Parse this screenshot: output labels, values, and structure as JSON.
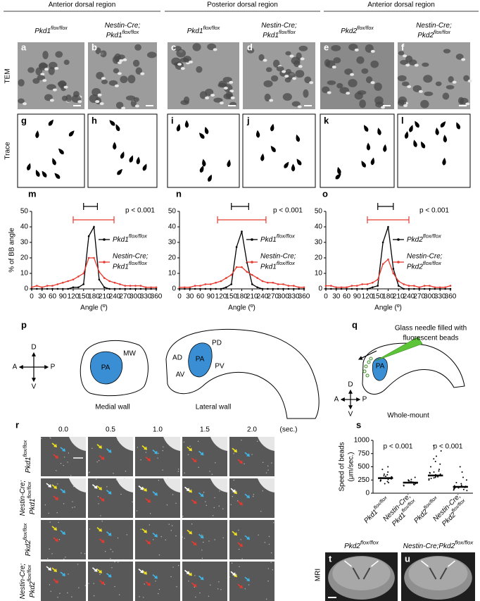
{
  "regions": [
    "Anterior dorsal region",
    "Posterior dorsal region",
    "Anterior dorsal region"
  ],
  "row_labels": {
    "tem": "TEM",
    "trace": "Trace",
    "mri": "MRI"
  },
  "panel_letters": [
    "a",
    "b",
    "c",
    "d",
    "e",
    "f",
    "g",
    "h",
    "i",
    "j",
    "k",
    "l",
    "m",
    "n",
    "o",
    "p",
    "q",
    "r",
    "s",
    "t",
    "u"
  ],
  "genotypes": [
    {
      "gene": "Pkd1",
      "sup": "flox/flox"
    },
    {
      "prefix": "Nestin-Cre;",
      "gene": "Pkd1",
      "sup": "flox/flox"
    },
    {
      "gene": "Pkd1",
      "sup": "flox/flox"
    },
    {
      "prefix": "Nestin-Cre;",
      "gene": "Pkd1",
      "sup": "flox/flox"
    },
    {
      "gene": "Pkd2",
      "sup": "flox/flox"
    },
    {
      "prefix": "Nestin-Cre;",
      "gene": "Pkd2",
      "sup": "flox/flox"
    }
  ],
  "chart_data": [
    {
      "type": "line",
      "annotation": "p < 0.001",
      "xlabel": "Angle (º)",
      "ylabel": "% of BB angle",
      "x": [
        0,
        15,
        30,
        45,
        60,
        75,
        90,
        105,
        120,
        135,
        150,
        165,
        180,
        195,
        210,
        225,
        240,
        255,
        270,
        285,
        300,
        315,
        330,
        345,
        360
      ],
      "xlim": [
        0,
        360
      ],
      "xticks": [
        0,
        30,
        60,
        90,
        120,
        150,
        180,
        210,
        240,
        270,
        300,
        330,
        360
      ],
      "ylim": [
        0,
        50
      ],
      "yticks": [
        0,
        10,
        20,
        30,
        40,
        50
      ],
      "series": [
        {
          "name": {
            "gene": "Pkd1",
            "sup": "flox/flox"
          },
          "color": "#000000",
          "range": [
            150,
            190
          ],
          "values": [
            0,
            0,
            0,
            0,
            0,
            0,
            0,
            0,
            1,
            1,
            3,
            34,
            40,
            6,
            1,
            0,
            0,
            0,
            0,
            0,
            0,
            0,
            0,
            0,
            0
          ]
        },
        {
          "name": {
            "prefix": "Nestin-Cre;",
            "gene": "Pkd1",
            "sup": "flox/flox"
          },
          "color": "#e8392f",
          "range": [
            120,
            238
          ],
          "values": [
            1,
            2,
            1,
            2,
            2,
            3,
            4,
            5,
            6,
            8,
            10,
            20,
            20,
            11,
            7,
            5,
            4,
            3,
            2,
            2,
            2,
            2,
            1,
            1,
            1
          ]
        }
      ]
    },
    {
      "type": "line",
      "annotation": "p < 0.001",
      "xlabel": "Angle (º)",
      "x": [
        0,
        15,
        30,
        45,
        60,
        75,
        90,
        105,
        120,
        135,
        150,
        165,
        180,
        195,
        210,
        225,
        240,
        255,
        270,
        285,
        300,
        315,
        330,
        345,
        360
      ],
      "xlim": [
        0,
        360
      ],
      "xticks": [
        0,
        30,
        60,
        90,
        120,
        150,
        180,
        210,
        240,
        270,
        300,
        330,
        360
      ],
      "ylim": [
        0,
        50
      ],
      "yticks": [
        0,
        10,
        20,
        30,
        40,
        50
      ],
      "series": [
        {
          "name": {
            "gene": "Pkd1",
            "sup": "flox/flox"
          },
          "color": "#000000",
          "range": [
            150,
            200
          ],
          "values": [
            0,
            0,
            0,
            0,
            0,
            0,
            0,
            0,
            0,
            1,
            3,
            27,
            37,
            17,
            3,
            1,
            0,
            0,
            0,
            0,
            0,
            0,
            0,
            0,
            0
          ]
        },
        {
          "name": {
            "prefix": "Nestin-Cre;",
            "gene": "Pkd1",
            "sup": "flox/flox"
          },
          "color": "#e8392f",
          "range": [
            110,
            250
          ],
          "values": [
            1,
            1,
            1,
            2,
            2,
            3,
            3,
            4,
            5,
            7,
            9,
            14,
            14,
            11,
            9,
            7,
            5,
            4,
            4,
            3,
            3,
            2,
            2,
            1,
            1
          ]
        }
      ]
    },
    {
      "type": "line",
      "annotation": "p < 0.001",
      "xlabel": "Angle (º)",
      "x": [
        0,
        15,
        30,
        45,
        60,
        75,
        90,
        105,
        120,
        135,
        150,
        165,
        180,
        195,
        210,
        225,
        240,
        255,
        270,
        285,
        300,
        315,
        330,
        345,
        360
      ],
      "xlim": [
        0,
        360
      ],
      "xticks": [
        0,
        30,
        60,
        90,
        120,
        150,
        180,
        210,
        240,
        270,
        300,
        330,
        360
      ],
      "ylim": [
        0,
        50
      ],
      "yticks": [
        0,
        10,
        20,
        30,
        40,
        50
      ],
      "series": [
        {
          "name": {
            "gene": "Pkd2",
            "sup": "flox/flox"
          },
          "color": "#000000",
          "range": [
            150,
            195
          ],
          "values": [
            0,
            0,
            0,
            0,
            0,
            0,
            0,
            0,
            0,
            1,
            2,
            30,
            40,
            13,
            2,
            0,
            0,
            0,
            0,
            0,
            0,
            0,
            0,
            0,
            0
          ]
        },
        {
          "name": {
            "prefix": "Nestin-Cre;",
            "gene": "Pkd2",
            "sup": "flox/flox"
          },
          "color": "#e8392f",
          "range": [
            120,
            240
          ],
          "values": [
            2,
            2,
            1,
            1,
            1,
            2,
            2,
            3,
            3,
            4,
            6,
            16,
            19,
            10,
            5,
            3,
            2,
            2,
            1,
            2,
            2,
            1,
            1,
            1,
            2
          ]
        }
      ]
    },
    {
      "type": "strip",
      "ylabel": [
        "Speed of beads",
        "(μm/sec.)"
      ],
      "annotations": [
        "p < 0.001",
        "p < 0.001"
      ],
      "ylim": [
        0,
        1000
      ],
      "yticks": [
        0,
        250,
        500,
        750,
        1000
      ],
      "color": "#000000",
      "categories": [
        {
          "gene": "Pkd1",
          "sup": "flox/flox"
        },
        {
          "prefix": "Nestin-Cre;",
          "gene": "Pkd1",
          "sup": "flox/flox"
        },
        {
          "gene": "Pkd2",
          "sup": "flox/flox"
        },
        {
          "prefix": "Nestin-Cre;",
          "gene": "Pkd2",
          "sup": "flox/flox"
        }
      ],
      "medians": [
        285,
        200,
        335,
        120
      ],
      "values": [
        [
          280,
          300,
          250,
          320,
          350,
          230,
          270,
          400,
          200,
          310,
          260,
          290,
          330,
          180,
          450,
          240,
          360,
          290,
          220,
          500
        ],
        [
          200,
          180,
          220,
          150,
          250,
          190,
          210,
          170,
          300,
          230,
          160,
          240,
          200,
          140,
          260
        ],
        [
          330,
          350,
          300,
          400,
          500,
          600,
          280,
          320,
          380,
          250,
          450,
          700,
          340,
          360,
          310,
          420,
          550,
          290,
          800,
          900,
          650,
          270,
          390
        ],
        [
          100,
          80,
          150,
          120,
          200,
          60,
          90,
          300,
          50,
          130,
          110,
          250,
          70,
          180,
          400,
          140,
          100,
          500
        ]
      ]
    }
  ],
  "diagram_p": {
    "compass": {
      "up": "D",
      "left": "A",
      "right": "P",
      "down": "V"
    },
    "medial_wall": {
      "region_labels": [
        "MW",
        "PA"
      ],
      "caption": "Medial wall"
    },
    "lateral_wall": {
      "region_labels": [
        "AD",
        "PD",
        "PA",
        "PV",
        "AV"
      ],
      "caption": "Lateral wall"
    }
  },
  "diagram_q": {
    "needle_label": [
      "Glass needle filled with",
      "fluorescent beads"
    ],
    "region_label": "PA",
    "compass": {
      "up": "D",
      "left": "A",
      "right": "P",
      "down": "V"
    },
    "caption": "Whole-mount"
  },
  "time_lapse": {
    "times": [
      "0.0",
      "0.5",
      "1.0",
      "1.5",
      "2.0"
    ],
    "unit": "(sec.)",
    "rows": [
      {
        "gene": "Pkd1",
        "sup": "flox/flox"
      },
      {
        "prefix": "Nestin-Cre;",
        "gene": "Pkd1",
        "sup": "flox/flox"
      },
      {
        "gene": "Pkd2",
        "sup": "flox/flox"
      },
      {
        "prefix": "Nestin-Cre;",
        "gene": "Pkd2",
        "sup": "flox/flox"
      }
    ]
  },
  "mri": {
    "titles": [
      {
        "gene": "Pkd2",
        "sup": "flox/flox"
      },
      {
        "prefix": "Nestin-Cre;",
        "gene": "Pkd2",
        "sup": "flox/flox"
      }
    ]
  }
}
